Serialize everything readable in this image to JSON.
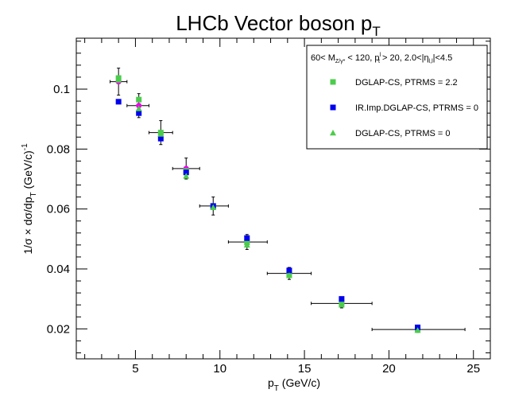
{
  "chart_data": {
    "type": "scatter",
    "title": "LHCb Vector boson p",
    "title_sub": "T",
    "xlabel_main": "p",
    "xlabel_sub": "T",
    "xlabel_unit": " (GeV/c)",
    "ylabel": "1/σ × dσ/dp",
    "ylabel_sub": "T",
    "ylabel_unit": "  (GeV/c)",
    "ylabel_sup": "-1",
    "xlim": [
      1.5,
      26.0
    ],
    "ylim": [
      0.01,
      0.117
    ],
    "xticks": [
      5,
      10,
      15,
      20,
      25
    ],
    "yticks": [
      0.02,
      0.04,
      0.06,
      0.08,
      0.1
    ],
    "yticklabels": [
      "0.02",
      "0.04",
      "0.06",
      "0.08",
      "0.1"
    ],
    "legend": {
      "placement": "top-right",
      "header": "60< M",
      "header_sub1": "Z/γ*",
      "header_mid1": " < 120, p",
      "header_sup2": "l",
      "header_sub2": "t",
      "header_mid2": " > 20, 2.0<|η",
      "header_sub3": "l,l",
      "header_end": "|<4.5"
    },
    "data_points": [
      {
        "x": 4.0,
        "y": 0.1025,
        "xlo": 3.5,
        "xhi": 4.5,
        "yerr": 0.0045
      },
      {
        "x": 5.2,
        "y": 0.0945,
        "xlo": 4.5,
        "xhi": 5.8,
        "yerr": 0.004
      },
      {
        "x": 6.5,
        "y": 0.0855,
        "xlo": 5.8,
        "xhi": 7.2,
        "yerr": 0.004
      },
      {
        "x": 8.0,
        "y": 0.0735,
        "xlo": 7.2,
        "xhi": 8.8,
        "yerr": 0.0035
      },
      {
        "x": 9.6,
        "y": 0.061,
        "xlo": 8.8,
        "xhi": 10.5,
        "yerr": 0.003
      },
      {
        "x": 11.6,
        "y": 0.049,
        "xlo": 10.5,
        "xhi": 12.8,
        "yerr": 0.0025
      },
      {
        "x": 14.1,
        "y": 0.0385,
        "xlo": 12.8,
        "xhi": 15.4,
        "yerr": 0.002
      },
      {
        "x": 17.2,
        "y": 0.0285,
        "xlo": 15.4,
        "xhi": 19.0,
        "yerr": 0.0015
      },
      {
        "x": 21.7,
        "y": 0.0198,
        "xlo": 19.0,
        "xhi": 24.5,
        "yerr": 0.001
      }
    ],
    "data_color": "#ee00ee",
    "series": [
      {
        "name": "DGLAP-CS, PTRMS = 2.2",
        "marker": "square",
        "color": "#4ccc4c",
        "x": [
          4.0,
          5.2,
          6.5,
          8.0,
          9.6,
          11.6,
          14.1,
          17.2,
          21.7
        ],
        "y": [
          0.1037,
          0.0965,
          0.0855,
          0.0727,
          0.061,
          0.0488,
          0.0382,
          0.0285,
          0.0198
        ]
      },
      {
        "name": "IR.Imp.DGLAP-CS, PTRMS = 0",
        "marker": "square",
        "color": "#0000ee",
        "x": [
          4.0,
          5.2,
          6.5,
          8.0,
          9.6,
          11.6,
          14.1,
          17.2,
          21.7
        ],
        "y": [
          0.0958,
          0.092,
          0.0835,
          0.0722,
          0.061,
          0.0503,
          0.0395,
          0.03,
          0.0205
        ]
      },
      {
        "name": "DGLAP-CS, PTRMS = 0",
        "marker": "triangle",
        "color": "#4ccc4c",
        "x": [
          4.0,
          5.2,
          6.5,
          8.0,
          9.6,
          11.6,
          14.1,
          17.2,
          21.7
        ],
        "y": [
          0.103,
          0.0935,
          0.085,
          0.071,
          0.0605,
          0.048,
          0.0378,
          0.028,
          0.0195
        ]
      }
    ]
  }
}
